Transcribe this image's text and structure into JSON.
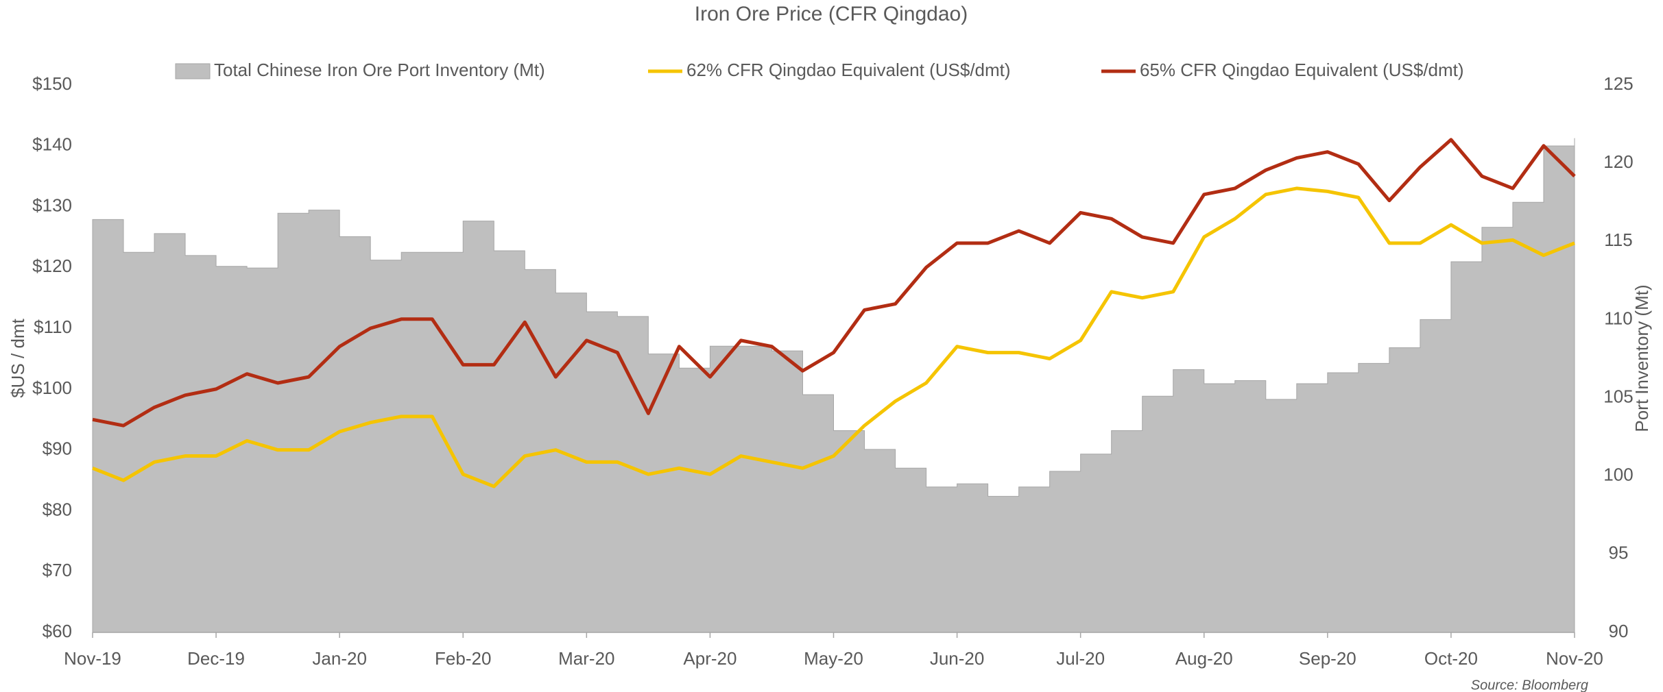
{
  "chart_data": {
    "type": "combo",
    "title": "Iron Ore Price (CFR Qingdao)",
    "y_label": "$US / dmt",
    "y2_label": "Port Inventory (Mt)",
    "source": "Source: Bloomberg",
    "categories": [
      "Nov-19",
      null,
      null,
      null,
      "Dec-19",
      null,
      null,
      null,
      "Jan-20",
      null,
      null,
      null,
      "Feb-20",
      null,
      null,
      null,
      "Mar-20",
      null,
      null,
      null,
      "Apr-20",
      null,
      null,
      null,
      "May-20",
      null,
      null,
      null,
      "Jun-20",
      null,
      null,
      null,
      "Jul-20",
      null,
      null,
      null,
      "Aug-20",
      null,
      null,
      null,
      "Sep-20",
      null,
      null,
      null,
      "Oct-20",
      null,
      null,
      null,
      "Nov-20"
    ],
    "ylim": [
      60,
      150
    ],
    "yticks": [
      {
        "value": 60,
        "label": "$60"
      },
      {
        "value": 70,
        "label": "$70"
      },
      {
        "value": 80,
        "label": "$80"
      },
      {
        "value": 90,
        "label": "$90"
      },
      {
        "value": 100,
        "label": "$100"
      },
      {
        "value": 110,
        "label": "$110"
      },
      {
        "value": 120,
        "label": "$120"
      },
      {
        "value": 130,
        "label": "$130"
      },
      {
        "value": 140,
        "label": "$140"
      },
      {
        "value": 150,
        "label": "$150"
      }
    ],
    "y2lim": [
      90,
      125
    ],
    "y2ticks": [
      90,
      95,
      100,
      105,
      110,
      115,
      120,
      125
    ],
    "series": [
      {
        "name": "Total Chinese Iron Ore Port Inventory (Mt)",
        "type": "step-area",
        "axis": "y2",
        "color": "#bfbfbf",
        "values": [
          116.4,
          114.3,
          115.5,
          114.1,
          113.4,
          113.3,
          116.8,
          117.0,
          115.3,
          113.8,
          114.3,
          114.3,
          116.3,
          114.4,
          113.2,
          111.7,
          110.5,
          110.2,
          107.8,
          106.9,
          108.3,
          108.3,
          108.0,
          105.2,
          102.9,
          101.7,
          100.5,
          99.3,
          99.5,
          98.7,
          99.3,
          100.3,
          101.4,
          102.9,
          105.1,
          106.8,
          105.9,
          106.1,
          104.9,
          105.9,
          106.6,
          107.2,
          108.2,
          110.0,
          113.7,
          115.9,
          117.5,
          121.1,
          121.6
        ]
      },
      {
        "name": "62% CFR Qingdao Equivalent (US$/dmt)",
        "type": "line",
        "color": "#f5c400",
        "values": [
          87,
          85,
          88,
          89,
          89,
          91.5,
          90,
          90,
          93,
          94.5,
          95.5,
          95.5,
          86,
          84,
          89,
          90,
          88,
          88,
          86,
          87,
          86,
          89,
          88,
          87,
          89,
          94,
          98,
          101,
          107,
          106,
          106,
          105,
          108,
          116,
          115,
          116,
          125,
          128,
          132,
          133,
          132.5,
          131.5,
          124,
          124,
          127,
          124,
          124.5,
          122,
          124
        ]
      },
      {
        "name": "65% CFR Qingdao Equivalent (US$/dmt)",
        "type": "line",
        "color": "#b22d13",
        "values": [
          95,
          94,
          97,
          99,
          100,
          102.5,
          101,
          102,
          107,
          110,
          111.5,
          111.5,
          104,
          104,
          111,
          102,
          108,
          106,
          96,
          107,
          102,
          108,
          107,
          103,
          106,
          113,
          114,
          120,
          124,
          124,
          126,
          124,
          129,
          128,
          125,
          124,
          132,
          133,
          136,
          138,
          139,
          137,
          131,
          136.5,
          141,
          135,
          133,
          140,
          135
        ]
      }
    ]
  }
}
